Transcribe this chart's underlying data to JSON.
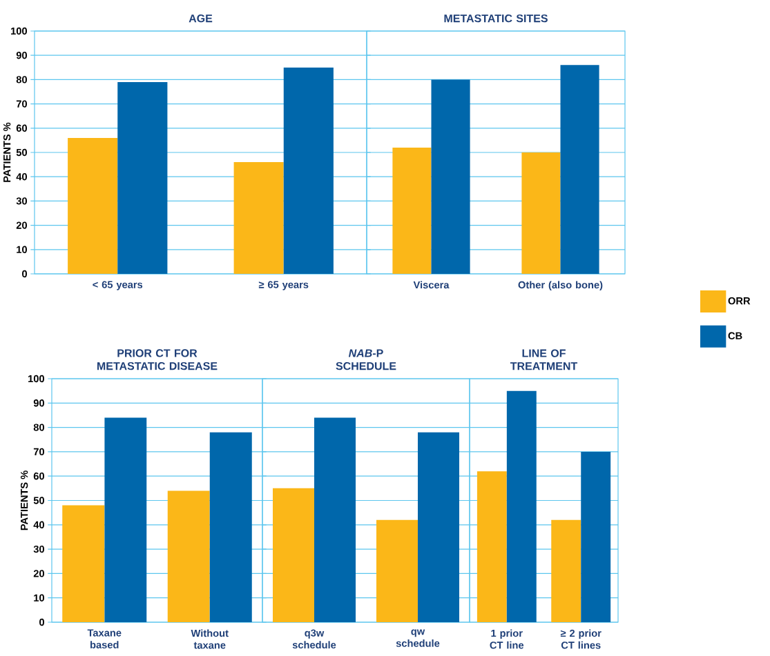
{
  "chart_data": [
    {
      "type": "bar",
      "title": "AGE",
      "ylabel": "PATIENTS %",
      "categories": [
        "< 65 years",
        "≥ 65 years"
      ],
      "series": [
        {
          "color": "#fbb718",
          "values": [
            56,
            46
          ]
        },
        {
          "color": "#0067ab",
          "values": [
            79,
            85
          ]
        }
      ],
      "ylim": [
        0,
        100
      ],
      "yticks": [
        0,
        10,
        20,
        30,
        40,
        50,
        60,
        70,
        80,
        90,
        100
      ],
      "grid": "y"
    },
    {
      "type": "bar",
      "title": "METASTATIC SITES",
      "categories": [
        "Viscera",
        "Other (also bone)"
      ],
      "series": [
        {
          "name": "ORR",
          "color": "#fbb718",
          "values": [
            52,
            50
          ]
        },
        {
          "name": "CB",
          "color": "#0067ab",
          "values": [
            80,
            86
          ]
        }
      ],
      "ylim": [
        0,
        100
      ],
      "yticks": [
        0,
        10,
        20,
        30,
        40,
        50,
        60,
        70,
        80,
        90,
        100
      ],
      "grid": "y",
      "legend": "right",
      "tick_labels": "x"
    },
    {
      "type": "bar",
      "title": "PRIOR CT FOR METASTATIC DISEASE",
      "ylabel": "PATIENTS %",
      "categories": [
        "Taxane based",
        "Without taxane"
      ],
      "series": [
        {
          "color": "#fbb718",
          "values": [
            48,
            54
          ]
        },
        {
          "color": "#0067ab",
          "values": [
            84,
            78
          ]
        }
      ],
      "ylim": [
        0,
        100
      ],
      "yticks": [
        0,
        10,
        20,
        30,
        40,
        50,
        60,
        70,
        80,
        90,
        100
      ],
      "grid": "y"
    },
    {
      "type": "bar",
      "title": "*NAB*-P SCHEDULE",
      "categories": [
        "q3w schedule",
        "qw schedule"
      ],
      "series": [
        {
          "color": "#fbb718",
          "values": [
            55,
            42
          ]
        },
        {
          "color": "#0067ab",
          "values": [
            84,
            78
          ]
        }
      ],
      "ylim": [
        0,
        100
      ],
      "yticks": [
        0,
        10,
        20,
        30,
        40,
        50,
        60,
        70,
        80,
        90,
        100
      ],
      "grid": "y",
      "tick_labels": "x"
    },
    {
      "type": "bar",
      "title": "LINE OF TREATMENT",
      "categories": [
        "1 prior CT line",
        "≥ 2 prior CT lines"
      ],
      "series": [
        {
          "color": "#fbb718",
          "values": [
            62,
            42
          ]
        },
        {
          "color": "#0067ab",
          "values": [
            95,
            70
          ]
        }
      ],
      "ylim": [
        0,
        100
      ],
      "yticks": [
        0,
        10,
        20,
        30,
        40,
        50,
        60,
        70,
        80,
        90,
        100
      ],
      "grid": "y",
      "tick_labels": "x"
    }
  ]
}
